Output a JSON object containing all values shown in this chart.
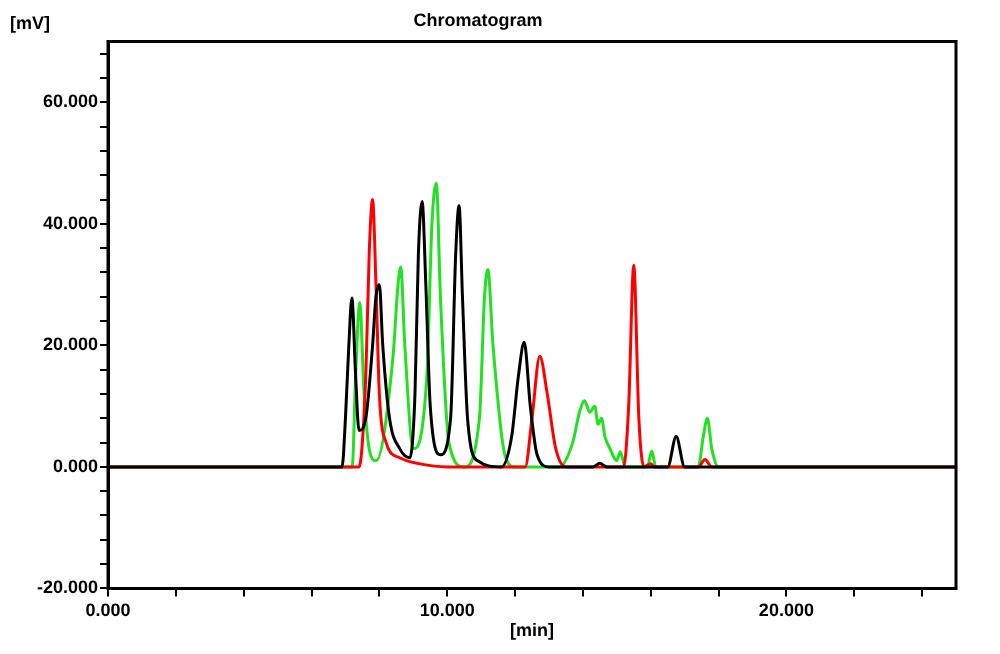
{
  "chart_data": {
    "type": "line",
    "title": "Chromatogram",
    "xlabel": "[min]",
    "ylabel": "[mV]",
    "xlim": [
      0,
      25
    ],
    "xticks": [
      {
        "value": 0,
        "label": "0.000"
      },
      {
        "value": 2,
        "label": null
      },
      {
        "value": 4,
        "label": null
      },
      {
        "value": 6,
        "label": null
      },
      {
        "value": 8,
        "label": null
      },
      {
        "value": 10,
        "label": "10.000"
      },
      {
        "value": 12,
        "label": null
      },
      {
        "value": 14,
        "label": null
      },
      {
        "value": 16,
        "label": null
      },
      {
        "value": 18,
        "label": null
      },
      {
        "value": 20,
        "label": "20.000"
      },
      {
        "value": 22,
        "label": null
      },
      {
        "value": 24,
        "label": null
      }
    ],
    "ylim": [
      -20,
      70
    ],
    "yticks": [
      {
        "value": -20,
        "label": "-20.000"
      },
      {
        "value": -16,
        "label": null
      },
      {
        "value": -12,
        "label": null
      },
      {
        "value": -8,
        "label": null
      },
      {
        "value": -4,
        "label": null
      },
      {
        "value": 0,
        "label": "0.000"
      },
      {
        "value": 4,
        "label": null
      },
      {
        "value": 8,
        "label": null
      },
      {
        "value": 12,
        "label": null
      },
      {
        "value": 16,
        "label": null
      },
      {
        "value": 20,
        "label": "20.000"
      },
      {
        "value": 24,
        "label": null
      },
      {
        "value": 28,
        "label": null
      },
      {
        "value": 32,
        "label": null
      },
      {
        "value": 36,
        "label": null
      },
      {
        "value": 40,
        "label": "40.000"
      },
      {
        "value": 44,
        "label": null
      },
      {
        "value": 48,
        "label": null
      },
      {
        "value": 52,
        "label": null
      },
      {
        "value": 56,
        "label": null
      },
      {
        "value": 60,
        "label": "60.000"
      },
      {
        "value": 64,
        "label": null
      },
      {
        "value": 68,
        "label": null
      }
    ],
    "grid": false,
    "legend": false,
    "marker": "none",
    "line_style": "solid",
    "series": [
      {
        "color": "#000000",
        "x": [
          0,
          6.9,
          7.0,
          7.1,
          7.19,
          7.3,
          7.4,
          7.6,
          7.8,
          7.9,
          8.0,
          8.1,
          8.3,
          8.6,
          8.9,
          9.05,
          9.15,
          9.26,
          9.37,
          9.5,
          9.8,
          10.1,
          10.25,
          10.35,
          10.45,
          10.6,
          10.9,
          11.6,
          11.9,
          12.1,
          12.27,
          12.45,
          12.65,
          13.0,
          14.3,
          14.5,
          14.7,
          16.5,
          16.75,
          17.0,
          25
        ],
        "values": [
          0,
          0,
          8,
          20,
          27.8,
          15,
          6,
          8,
          20,
          28,
          30,
          20,
          8,
          3,
          1.5,
          12,
          35,
          43.7,
          30,
          10,
          2,
          8,
          35,
          43,
          28,
          8,
          1,
          0,
          5,
          15,
          20.5,
          10,
          2,
          0,
          0,
          0.6,
          0,
          0,
          5,
          0,
          0
        ]
      },
      {
        "color": "#ff0000",
        "x": [
          0,
          7.4,
          7.6,
          7.7,
          7.8,
          7.9,
          8.0,
          8.2,
          8.6,
          9.2,
          10,
          12.3,
          12.5,
          12.73,
          12.95,
          13.2,
          13.5,
          15.2,
          15.35,
          15.5,
          15.65,
          15.8,
          16.0,
          16.1,
          17.4,
          17.6,
          17.8,
          25
        ],
        "values": [
          0,
          0,
          15,
          35,
          44,
          30,
          12,
          4,
          1.5,
          0.5,
          0,
          0,
          8,
          18.2,
          12,
          3,
          0,
          0,
          10,
          33.2,
          8,
          0,
          0.5,
          0,
          0,
          1.2,
          0,
          0
        ]
      },
      {
        "color": "#22e022",
        "x": [
          0,
          7.2,
          7.3,
          7.42,
          7.55,
          7.7,
          7.9,
          8.4,
          8.55,
          8.63,
          8.75,
          9.0,
          9.4,
          9.55,
          9.68,
          9.8,
          10.05,
          10.5,
          10.95,
          11.1,
          11.2,
          11.35,
          11.7,
          12.0,
          13.3,
          13.7,
          13.9,
          14.05,
          14.2,
          14.35,
          14.45,
          14.55,
          14.65,
          14.8,
          15.0,
          15.1,
          15.25,
          15.9,
          16.03,
          16.15,
          17.4,
          17.55,
          17.67,
          17.8,
          18.0,
          25
        ],
        "values": [
          0,
          0,
          15,
          27,
          12,
          3,
          1,
          18,
          30,
          32.9,
          20,
          3,
          15,
          40,
          46.7,
          28,
          4,
          0,
          8,
          28,
          32.5,
          20,
          2,
          0,
          0,
          4,
          9,
          10.9,
          9,
          10,
          7,
          8,
          5,
          3,
          1,
          2.5,
          0,
          0,
          2.6,
          0,
          0,
          5,
          8,
          3,
          0,
          0
        ]
      }
    ]
  }
}
